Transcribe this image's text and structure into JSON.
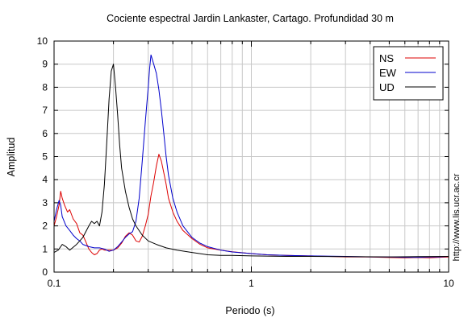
{
  "chart_data": {
    "type": "line",
    "title": "Cociente espectral Jardin Lankaster, Cartago. Profundidad 30 m",
    "xlabel": "Periodo (s)",
    "ylabel": "Amplitud",
    "x_scale": "log",
    "xlim": [
      0.1,
      10
    ],
    "ylim": [
      0,
      10
    ],
    "x_ticks": [
      {
        "value": 0.1,
        "label": "0.1"
      },
      {
        "value": 1,
        "label": "1"
      },
      {
        "value": 10,
        "label": "10"
      }
    ],
    "y_ticks": [
      "0",
      "1",
      "2",
      "3",
      "4",
      "5",
      "6",
      "7",
      "8",
      "9",
      "10"
    ],
    "grid": true,
    "legend_position": "top-right",
    "side_text": "http://www.lis.ucr.ac.cr",
    "series": [
      {
        "name": "NS",
        "color": "#dd0000",
        "points": [
          [
            0.1,
            2.0
          ],
          [
            0.103,
            2.4
          ],
          [
            0.106,
            2.9
          ],
          [
            0.108,
            3.5
          ],
          [
            0.11,
            3.2
          ],
          [
            0.113,
            2.9
          ],
          [
            0.117,
            2.6
          ],
          [
            0.12,
            2.7
          ],
          [
            0.125,
            2.3
          ],
          [
            0.13,
            2.1
          ],
          [
            0.135,
            1.7
          ],
          [
            0.14,
            1.6
          ],
          [
            0.145,
            1.3
          ],
          [
            0.15,
            1.0
          ],
          [
            0.155,
            0.85
          ],
          [
            0.16,
            0.75
          ],
          [
            0.165,
            0.8
          ],
          [
            0.17,
            0.95
          ],
          [
            0.175,
            1.0
          ],
          [
            0.18,
            0.95
          ],
          [
            0.19,
            0.95
          ],
          [
            0.2,
            0.95
          ],
          [
            0.21,
            1.05
          ],
          [
            0.22,
            1.25
          ],
          [
            0.23,
            1.55
          ],
          [
            0.24,
            1.7
          ],
          [
            0.25,
            1.6
          ],
          [
            0.26,
            1.35
          ],
          [
            0.27,
            1.3
          ],
          [
            0.28,
            1.55
          ],
          [
            0.29,
            2.0
          ],
          [
            0.3,
            2.5
          ],
          [
            0.31,
            3.3
          ],
          [
            0.32,
            3.9
          ],
          [
            0.33,
            4.6
          ],
          [
            0.34,
            5.1
          ],
          [
            0.35,
            4.8
          ],
          [
            0.36,
            4.3
          ],
          [
            0.37,
            3.8
          ],
          [
            0.38,
            3.2
          ],
          [
            0.4,
            2.6
          ],
          [
            0.42,
            2.2
          ],
          [
            0.45,
            1.8
          ],
          [
            0.5,
            1.45
          ],
          [
            0.55,
            1.2
          ],
          [
            0.6,
            1.05
          ],
          [
            0.7,
            0.95
          ],
          [
            0.8,
            0.88
          ],
          [
            1.0,
            0.8
          ],
          [
            1.2,
            0.75
          ],
          [
            1.5,
            0.72
          ],
          [
            2.0,
            0.7
          ],
          [
            3.0,
            0.66
          ],
          [
            4.0,
            0.65
          ],
          [
            5.0,
            0.63
          ],
          [
            6.0,
            0.62
          ],
          [
            7.0,
            0.63
          ],
          [
            8.0,
            0.62
          ],
          [
            9.0,
            0.64
          ],
          [
            10.0,
            0.65
          ]
        ]
      },
      {
        "name": "EW",
        "color": "#0000cc",
        "points": [
          [
            0.1,
            2.2
          ],
          [
            0.103,
            2.7
          ],
          [
            0.106,
            3.1
          ],
          [
            0.108,
            2.9
          ],
          [
            0.11,
            2.4
          ],
          [
            0.115,
            2.0
          ],
          [
            0.12,
            1.8
          ],
          [
            0.125,
            1.6
          ],
          [
            0.13,
            1.45
          ],
          [
            0.135,
            1.35
          ],
          [
            0.14,
            1.2
          ],
          [
            0.15,
            1.1
          ],
          [
            0.16,
            1.05
          ],
          [
            0.17,
            1.05
          ],
          [
            0.18,
            1.0
          ],
          [
            0.19,
            0.9
          ],
          [
            0.2,
            0.95
          ],
          [
            0.21,
            1.1
          ],
          [
            0.22,
            1.3
          ],
          [
            0.23,
            1.5
          ],
          [
            0.24,
            1.65
          ],
          [
            0.25,
            1.75
          ],
          [
            0.26,
            2.2
          ],
          [
            0.27,
            3.2
          ],
          [
            0.28,
            4.8
          ],
          [
            0.29,
            6.5
          ],
          [
            0.3,
            8.0
          ],
          [
            0.305,
            8.8
          ],
          [
            0.31,
            9.4
          ],
          [
            0.32,
            9.0
          ],
          [
            0.33,
            8.6
          ],
          [
            0.34,
            7.9
          ],
          [
            0.35,
            7.0
          ],
          [
            0.36,
            6.0
          ],
          [
            0.37,
            5.0
          ],
          [
            0.38,
            4.2
          ],
          [
            0.4,
            3.2
          ],
          [
            0.42,
            2.6
          ],
          [
            0.45,
            2.0
          ],
          [
            0.5,
            1.5
          ],
          [
            0.55,
            1.25
          ],
          [
            0.6,
            1.1
          ],
          [
            0.7,
            0.95
          ],
          [
            0.8,
            0.87
          ],
          [
            1.0,
            0.8
          ],
          [
            1.2,
            0.75
          ],
          [
            1.5,
            0.72
          ],
          [
            2.0,
            0.7
          ],
          [
            3.0,
            0.68
          ],
          [
            4.0,
            0.66
          ],
          [
            5.0,
            0.65
          ],
          [
            6.0,
            0.64
          ],
          [
            7.0,
            0.64
          ],
          [
            8.0,
            0.65
          ],
          [
            9.0,
            0.66
          ],
          [
            10.0,
            0.68
          ]
        ]
      },
      {
        "name": "UD",
        "color": "#000000",
        "points": [
          [
            0.1,
            0.85
          ],
          [
            0.105,
            0.95
          ],
          [
            0.11,
            1.2
          ],
          [
            0.115,
            1.1
          ],
          [
            0.12,
            0.95
          ],
          [
            0.13,
            1.2
          ],
          [
            0.14,
            1.5
          ],
          [
            0.15,
            2.0
          ],
          [
            0.155,
            2.2
          ],
          [
            0.16,
            2.1
          ],
          [
            0.165,
            2.2
          ],
          [
            0.17,
            2.0
          ],
          [
            0.175,
            2.6
          ],
          [
            0.18,
            3.8
          ],
          [
            0.185,
            5.6
          ],
          [
            0.19,
            7.5
          ],
          [
            0.195,
            8.7
          ],
          [
            0.2,
            9.0
          ],
          [
            0.205,
            8.0
          ],
          [
            0.21,
            6.8
          ],
          [
            0.215,
            5.5
          ],
          [
            0.22,
            4.5
          ],
          [
            0.23,
            3.5
          ],
          [
            0.24,
            2.8
          ],
          [
            0.25,
            2.3
          ],
          [
            0.26,
            2.0
          ],
          [
            0.28,
            1.6
          ],
          [
            0.3,
            1.35
          ],
          [
            0.33,
            1.2
          ],
          [
            0.37,
            1.05
          ],
          [
            0.42,
            0.95
          ],
          [
            0.5,
            0.85
          ],
          [
            0.6,
            0.75
          ],
          [
            0.7,
            0.72
          ],
          [
            0.8,
            0.72
          ],
          [
            1.0,
            0.7
          ],
          [
            1.5,
            0.68
          ],
          [
            2.0,
            0.68
          ],
          [
            3.0,
            0.67
          ],
          [
            5.0,
            0.66
          ],
          [
            7.0,
            0.67
          ],
          [
            10.0,
            0.68
          ]
        ]
      }
    ]
  }
}
